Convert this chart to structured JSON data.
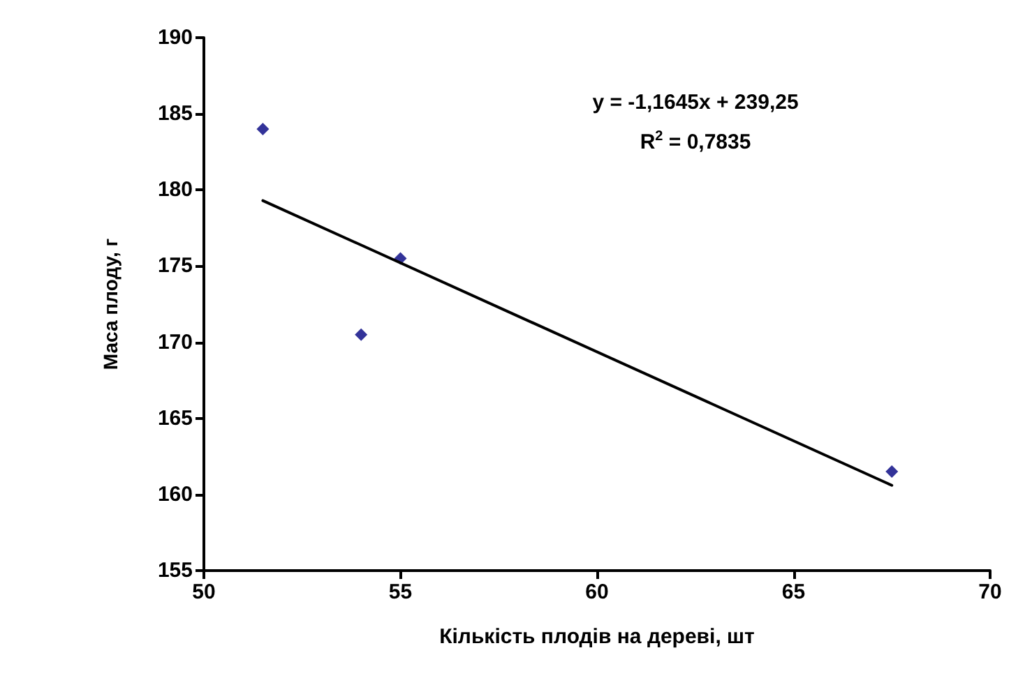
{
  "chart_data": {
    "type": "scatter",
    "xlabel": "Кількість плодів на дереві, шт",
    "ylabel": "Маса плоду, г",
    "xlim": [
      50,
      70
    ],
    "xticks": [
      50,
      55,
      60,
      65,
      70
    ],
    "ylim": [
      155,
      190
    ],
    "yticks": [
      155,
      160,
      165,
      170,
      175,
      180,
      185,
      190
    ],
    "grid": false,
    "marker": "diamond",
    "series": [
      {
        "color": "#000080",
        "x": [
          51.5,
          54,
          55,
          67.5
        ],
        "values": [
          184,
          170.5,
          175.5,
          161.5
        ]
      },
      {
        "type": "line",
        "color": "#000000",
        "x": [
          51.5,
          67.5
        ],
        "values": [
          179.3,
          160.6
        ],
        "marker": "none",
        "line_style": "solid"
      }
    ],
    "annotations": [
      "y = -1,1645x + 239,25",
      "R$^{2}$ = 0,7835"
    ]
  }
}
